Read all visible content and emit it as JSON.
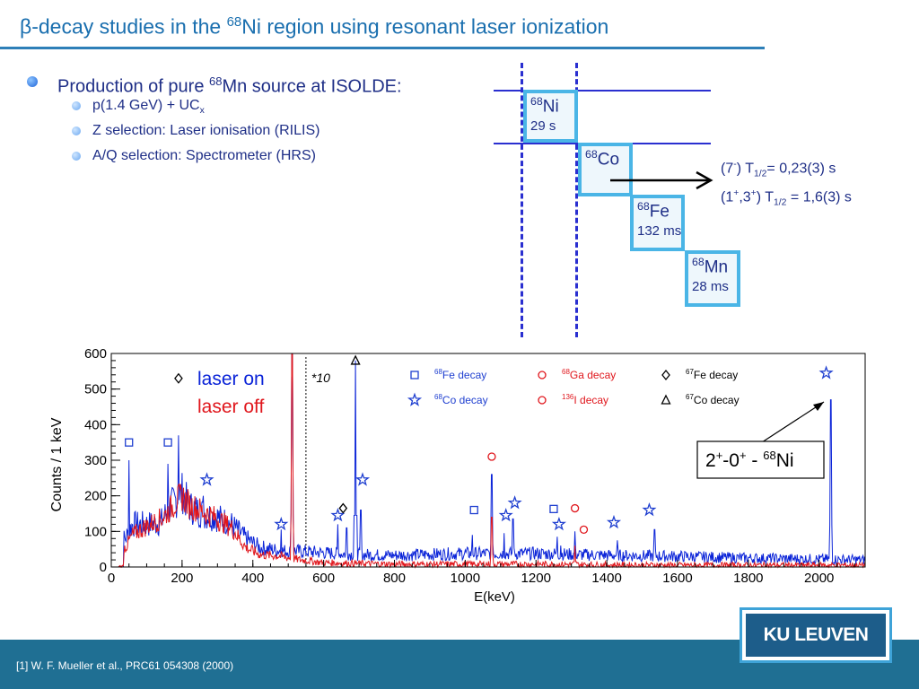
{
  "title": {
    "greek": "β",
    "pre": "-decay studies in the ",
    "mass": "68",
    "post": "Ni region using resonant laser ionization"
  },
  "bullets": {
    "main": {
      "pre": "Production of pure ",
      "mass": "68",
      "post": "Mn source at ISOLDE:"
    },
    "sub": [
      {
        "text": "p(1.4 GeV) + UC",
        "sub": "x"
      },
      {
        "text": "Z selection: Laser ionisation (RILIS)"
      },
      {
        "text": "A/Q selection: Spectrometer (HRS)"
      }
    ]
  },
  "decay_chain": [
    {
      "mass": "68",
      "element": "Ni",
      "half_life": "29 s"
    },
    {
      "mass": "68",
      "element": "Co",
      "half_life": ""
    },
    {
      "mass": "68",
      "element": "Fe",
      "half_life": "132 ms"
    },
    {
      "mass": "68",
      "element": "Mn",
      "half_life": "28 ms"
    }
  ],
  "co_states": {
    "s1": {
      "a": "(7",
      "a_sup": "-",
      "b": ") T",
      "sub": "1/2",
      "c": "= 0,23(3) s"
    },
    "s2": {
      "a": "(1",
      "a_sup": "+",
      "b": ",3",
      "b_sup": "+",
      "c": ") T",
      "sub": "1/2",
      "d": " = 1,6(3) s"
    }
  },
  "colors": {
    "title": "#1a6faf",
    "text": "#1f2f87",
    "box_border": "#4ab5e6",
    "laser_on": "#0b24d8",
    "laser_off": "#e0161c",
    "footer": "#1f6f93"
  },
  "chart_data": {
    "type": "line",
    "xlabel": "E(keV)",
    "ylabel": "Counts / 1 keV",
    "xlim": [
      0,
      2130
    ],
    "ylim": [
      0,
      600
    ],
    "x_ticks": [
      0,
      200,
      400,
      600,
      800,
      1000,
      1200,
      1400,
      1600,
      1800,
      2000
    ],
    "y_ticks": [
      0,
      100,
      200,
      300,
      400,
      500,
      600
    ],
    "series": [
      {
        "name": "laser on",
        "color": "#0b24d8"
      },
      {
        "name": "laser off",
        "color": "#e0161c"
      }
    ],
    "scale_note": "*10",
    "scale_note_x": 550,
    "continuum": {
      "on_points": [
        [
          40,
          80
        ],
        [
          60,
          120
        ],
        [
          100,
          120
        ],
        [
          140,
          125
        ],
        [
          160,
          160
        ],
        [
          180,
          185
        ],
        [
          200,
          210
        ],
        [
          220,
          170
        ],
        [
          260,
          150
        ],
        [
          300,
          140
        ],
        [
          340,
          120
        ],
        [
          380,
          80
        ],
        [
          420,
          55
        ],
        [
          480,
          45
        ],
        [
          520,
          45
        ],
        [
          600,
          40
        ],
        [
          700,
          35
        ],
        [
          800,
          33
        ],
        [
          1000,
          38
        ],
        [
          1200,
          38
        ],
        [
          1400,
          33
        ],
        [
          1600,
          30
        ],
        [
          1800,
          25
        ],
        [
          2000,
          22
        ],
        [
          2130,
          20
        ]
      ],
      "off_points": [
        [
          40,
          55
        ],
        [
          60,
          90
        ],
        [
          100,
          115
        ],
        [
          140,
          135
        ],
        [
          160,
          155
        ],
        [
          180,
          180
        ],
        [
          200,
          200
        ],
        [
          220,
          175
        ],
        [
          260,
          155
        ],
        [
          300,
          135
        ],
        [
          340,
          110
        ],
        [
          380,
          55
        ],
        [
          420,
          35
        ],
        [
          480,
          30
        ],
        [
          520,
          22
        ],
        [
          600,
          12
        ],
        [
          700,
          10
        ],
        [
          800,
          8
        ],
        [
          1000,
          8
        ],
        [
          1200,
          8
        ],
        [
          1400,
          6
        ],
        [
          1600,
          5
        ],
        [
          1800,
          5
        ],
        [
          2000,
          5
        ],
        [
          2130,
          5
        ]
      ]
    },
    "peaks_on": [
      [
        50,
        300
      ],
      [
        160,
        290
      ],
      [
        190,
        370
      ],
      [
        260,
        200
      ],
      [
        480,
        105
      ],
      [
        511,
        600
      ],
      [
        640,
        120
      ],
      [
        665,
        110
      ],
      [
        690,
        580
      ],
      [
        705,
        160
      ],
      [
        1020,
        90
      ],
      [
        1075,
        260
      ],
      [
        1110,
        95
      ],
      [
        1135,
        135
      ],
      [
        1260,
        85
      ],
      [
        1270,
        60
      ],
      [
        1310,
        100
      ],
      [
        1430,
        75
      ],
      [
        1535,
        105
      ],
      [
        2033,
        470
      ]
    ],
    "peaks_off": [
      [
        50,
        40
      ],
      [
        160,
        60
      ],
      [
        190,
        220
      ],
      [
        511,
        600
      ],
      [
        1075,
        140
      ],
      [
        1310,
        60
      ]
    ],
    "legend": [
      {
        "symbol": "square",
        "mass": "68",
        "label": "Fe decay",
        "color": "#1f3fd0"
      },
      {
        "symbol": "star",
        "mass": "68",
        "label": "Co decay",
        "color": "#1f3fd0"
      },
      {
        "symbol": "circle",
        "mass": "68",
        "label": "Ga decay",
        "color": "#e0161c"
      },
      {
        "symbol": "circle",
        "mass": "136",
        "label": "I decay",
        "color": "#e0161c"
      },
      {
        "symbol": "diamond",
        "mass": "67",
        "label": "Fe decay",
        "color": "#000000"
      },
      {
        "symbol": "triangle",
        "mass": "67",
        "label": "Co decay",
        "color": "#000000"
      }
    ],
    "markers": [
      {
        "symbol": "square",
        "x": 50,
        "y": 350
      },
      {
        "symbol": "square",
        "x": 160,
        "y": 350
      },
      {
        "symbol": "diamond",
        "x": 190,
        "y": 530
      },
      {
        "symbol": "star",
        "x": 270,
        "y": 245
      },
      {
        "symbol": "star",
        "x": 480,
        "y": 120
      },
      {
        "symbol": "star",
        "x": 640,
        "y": 145
      },
      {
        "symbol": "diamond",
        "x": 655,
        "y": 165
      },
      {
        "symbol": "triangle",
        "x": 690,
        "y": 580
      },
      {
        "symbol": "star",
        "x": 710,
        "y": 245
      },
      {
        "symbol": "square",
        "x": 1025,
        "y": 160
      },
      {
        "symbol": "circle",
        "x": 1075,
        "y": 310
      },
      {
        "symbol": "star",
        "x": 1115,
        "y": 145
      },
      {
        "symbol": "star",
        "x": 1140,
        "y": 180
      },
      {
        "symbol": "square",
        "x": 1250,
        "y": 163
      },
      {
        "symbol": "star",
        "x": 1265,
        "y": 120
      },
      {
        "symbol": "circle",
        "x": 1310,
        "y": 165
      },
      {
        "symbol": "circle",
        "x": 1335,
        "y": 105
      },
      {
        "symbol": "star",
        "x": 1420,
        "y": 125
      },
      {
        "symbol": "star",
        "x": 1520,
        "y": 160
      },
      {
        "symbol": "star",
        "x": 2020,
        "y": 545
      }
    ],
    "annotation": {
      "pre": "2",
      "sup1": "+",
      "mid": "-0",
      "sup2": "+",
      "dash": " - ",
      "mass": "68",
      "element": "Ni"
    }
  },
  "footer": {
    "citation": "[1] W. F. Mueller et al., PRC61 054308 (2000)"
  },
  "logo": {
    "text": "KU LEUVEN"
  }
}
